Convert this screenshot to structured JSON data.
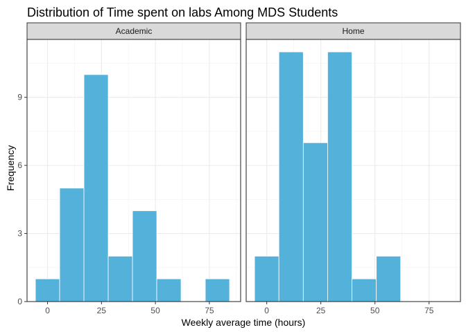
{
  "chart_data": {
    "type": "bar",
    "title": "Distribution of Time spent on labs Among MDS Students",
    "xlabel": "Weekly average time (hours)",
    "ylabel": "Frequency",
    "xlim": [
      -9.5,
      89.5
    ],
    "ylim": [
      0,
      11.55
    ],
    "x_ticks": [
      0,
      25,
      50,
      75
    ],
    "y_ticks": [
      0,
      3,
      6,
      9
    ],
    "bin_width": 11.25,
    "grid": true,
    "fill_color": "#53b1da",
    "bar_edge_color": "#ffffff",
    "panels": [
      {
        "name": "Academic",
        "bins": [
          {
            "x_start": -5.625,
            "x_end": 5.625,
            "count": 1
          },
          {
            "x_start": 5.625,
            "x_end": 16.875,
            "count": 5
          },
          {
            "x_start": 16.875,
            "x_end": 28.125,
            "count": 10
          },
          {
            "x_start": 28.125,
            "x_end": 39.375,
            "count": 2
          },
          {
            "x_start": 39.375,
            "x_end": 50.625,
            "count": 4
          },
          {
            "x_start": 50.625,
            "x_end": 61.875,
            "count": 1
          },
          {
            "x_start": 61.875,
            "x_end": 73.125,
            "count": 0
          },
          {
            "x_start": 73.125,
            "x_end": 84.375,
            "count": 1
          }
        ]
      },
      {
        "name": "Home",
        "bins": [
          {
            "x_start": -5.625,
            "x_end": 5.625,
            "count": 2
          },
          {
            "x_start": 5.625,
            "x_end": 16.875,
            "count": 11
          },
          {
            "x_start": 16.875,
            "x_end": 28.125,
            "count": 7
          },
          {
            "x_start": 28.125,
            "x_end": 39.375,
            "count": 11
          },
          {
            "x_start": 39.375,
            "x_end": 50.625,
            "count": 1
          },
          {
            "x_start": 50.625,
            "x_end": 61.875,
            "count": 2
          }
        ]
      }
    ]
  }
}
